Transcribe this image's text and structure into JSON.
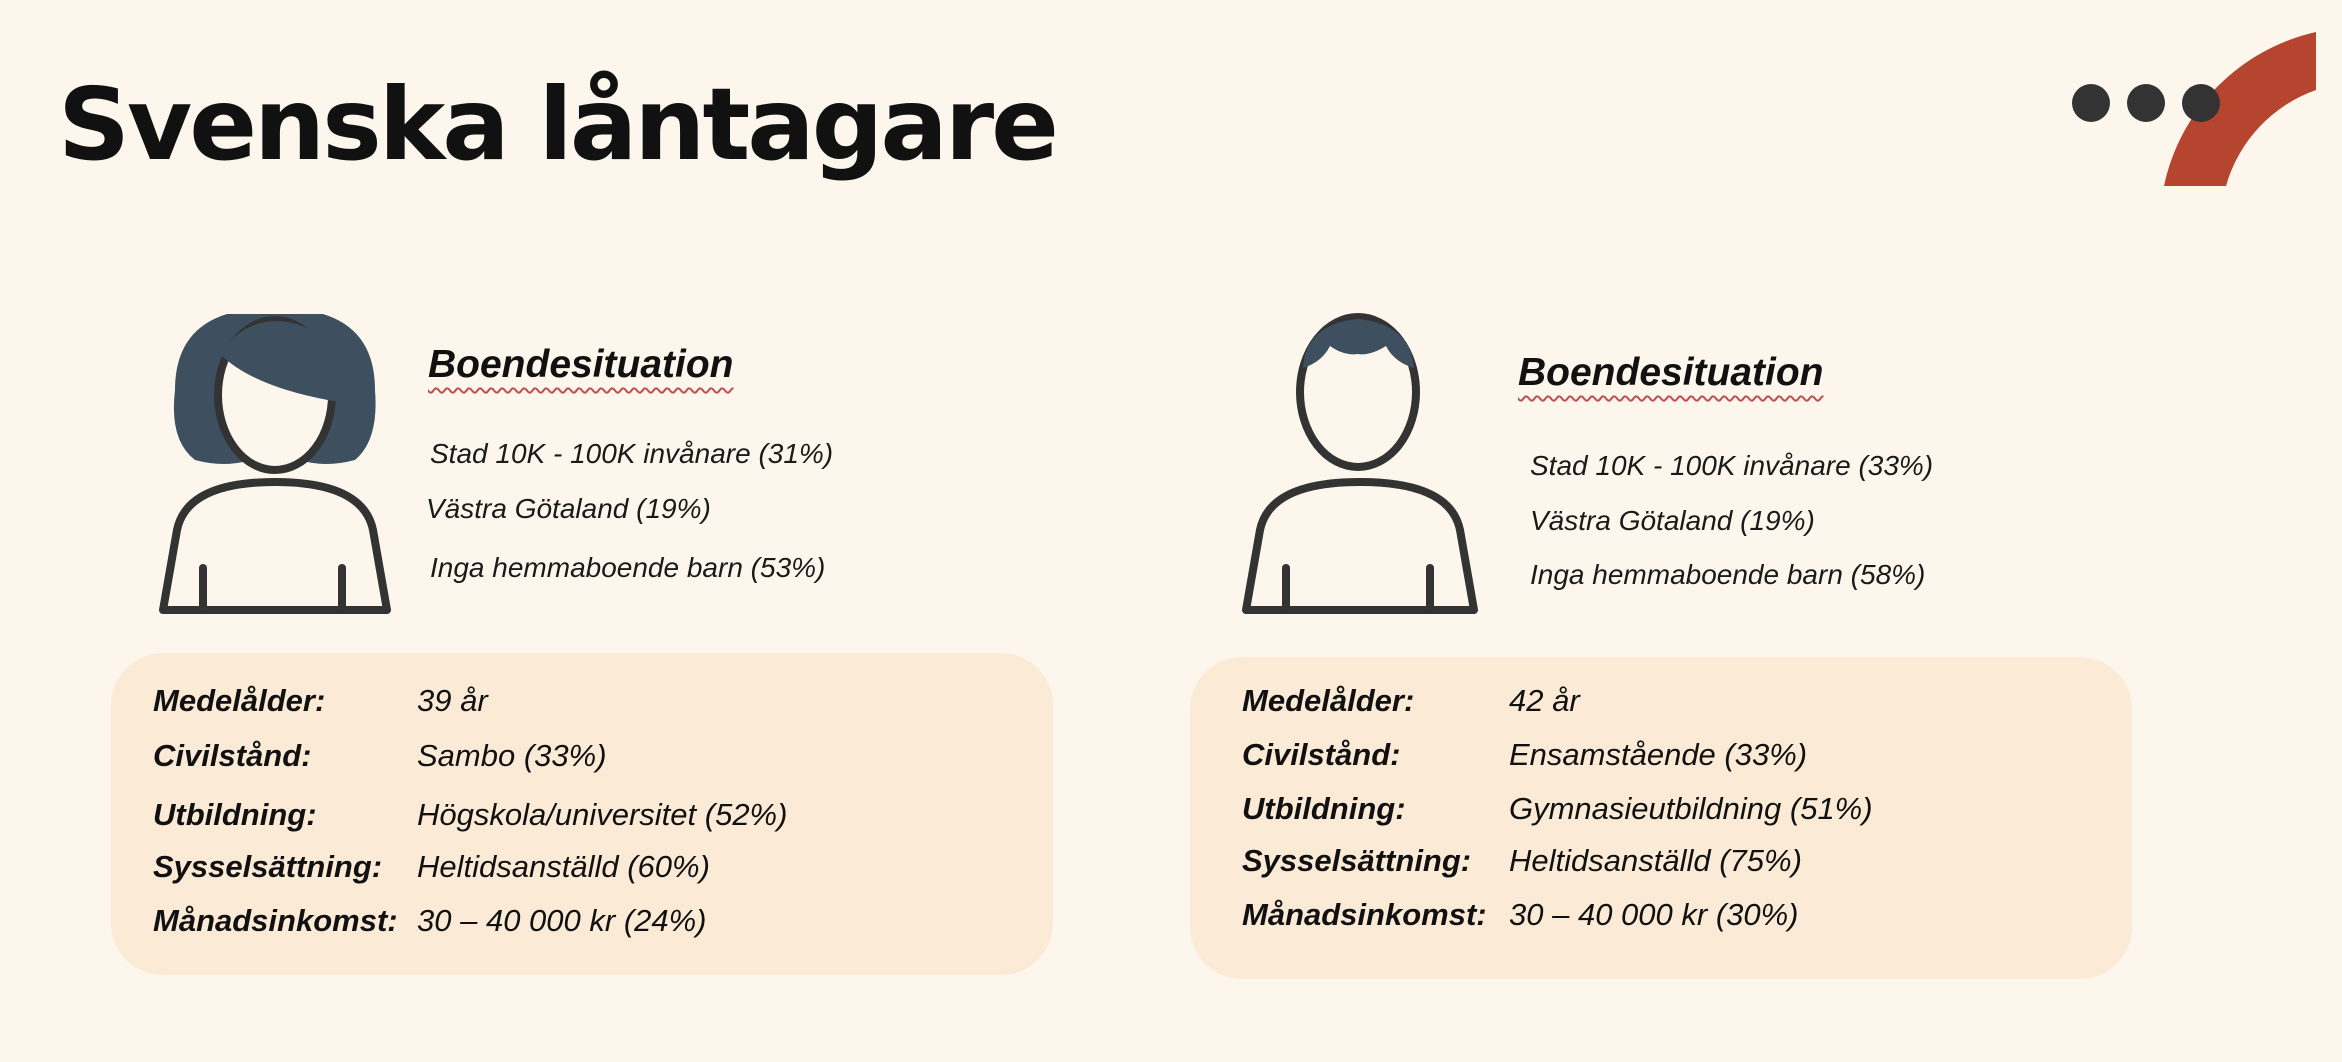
{
  "title": "Svenska låntagare",
  "colors": {
    "background": "#fdf6ec",
    "card": "#fbebd6",
    "accent": "#b5452f",
    "dots": "#333333",
    "hair": "#3e5060",
    "outline": "#333333"
  },
  "icons": {
    "left_avatar": "woman-avatar-icon",
    "right_avatar": "man-avatar-icon",
    "decoration": "arc-dots-decoration"
  },
  "left": {
    "heading": "Boendesituation",
    "facts": [
      "Stad 10K - 100K invånare (31%)",
      "Västra Götaland (19%)",
      "Inga hemmaboende barn (53%)"
    ],
    "stats": [
      {
        "label": "Medelålder:",
        "value": "39 år"
      },
      {
        "label": "Civilstånd:",
        "value": "Sambo (33%)"
      },
      {
        "label": "Utbildning:",
        "value": "Högskola/universitet (52%)"
      },
      {
        "label": "Sysselsättning:",
        "value": "Heltidsanställd (60%)"
      },
      {
        "label": "Månadsinkomst:",
        "value": "30 – 40 000 kr (24%)"
      }
    ]
  },
  "right": {
    "heading": "Boendesituation",
    "facts": [
      "Stad 10K - 100K invånare (33%)",
      "Västra Götaland (19%)",
      "Inga hemmaboende barn  (58%)"
    ],
    "stats": [
      {
        "label": "Medelålder:",
        "value": "42 år"
      },
      {
        "label": "Civilstånd:",
        "value": "Ensamstående (33%)"
      },
      {
        "label": "Utbildning:",
        "value": "Gymnasieutbildning (51%)"
      },
      {
        "label": "Sysselsättning:",
        "value": "Heltidsanställd (75%)"
      },
      {
        "label": "Månadsinkomst:",
        "value": "30 – 40 000 kr (30%)"
      }
    ]
  }
}
